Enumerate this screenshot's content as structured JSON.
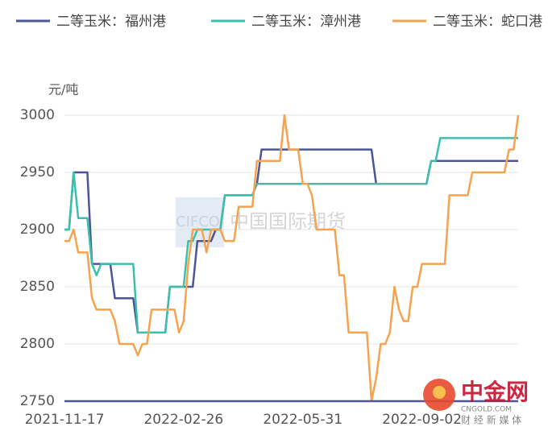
{
  "chart_data": {
    "type": "line",
    "y_axis_label": "元/吨",
    "categories": [
      "2021-11-17",
      null,
      null,
      null,
      null,
      null,
      null,
      null,
      null,
      null,
      null,
      null,
      null,
      null,
      null,
      null,
      null,
      null,
      null,
      null,
      null,
      null,
      null,
      null,
      null,
      null,
      "2022-02-26",
      null,
      null,
      null,
      null,
      null,
      null,
      null,
      null,
      null,
      null,
      null,
      null,
      null,
      null,
      null,
      null,
      null,
      null,
      null,
      null,
      null,
      null,
      null,
      null,
      null,
      "2022-05-31",
      null,
      null,
      null,
      null,
      null,
      null,
      null,
      null,
      null,
      null,
      null,
      null,
      null,
      null,
      null,
      null,
      null,
      null,
      null,
      null,
      null,
      null,
      null,
      null,
      null,
      "2022-09-02",
      null,
      null,
      null,
      null,
      null,
      null,
      null,
      null,
      null,
      null,
      null,
      null,
      null,
      null,
      null,
      null,
      null,
      null,
      null,
      null,
      null
    ],
    "series": [
      {
        "name": "二等玉米：福州港",
        "color": "#4b5597",
        "values": [
          2900,
          2900,
          2950,
          2950,
          2950,
          2950,
          2870,
          2870,
          2870,
          2870,
          2870,
          2840,
          2840,
          2840,
          2840,
          2840,
          2810,
          2810,
          2810,
          2810,
          2810,
          2810,
          2810,
          2850,
          2850,
          2850,
          2850,
          2850,
          2850,
          2890,
          2890,
          2890,
          2890,
          2900,
          2900,
          2930,
          2930,
          2930,
          2930,
          2930,
          2930,
          2930,
          2940,
          2970,
          2970,
          2970,
          2970,
          2970,
          2970,
          2970,
          2970,
          2970,
          2970,
          2970,
          2970,
          2970,
          2970,
          2970,
          2970,
          2970,
          2970,
          2970,
          2970,
          2970,
          2970,
          2970,
          2970,
          2970,
          2940,
          2940,
          2940,
          2940,
          2940,
          2940,
          2940,
          2940,
          2940,
          2940,
          2940,
          2940,
          2960,
          2960,
          2960,
          2960,
          2960,
          2960,
          2960,
          2960,
          2960,
          2960,
          2960,
          2960,
          2960,
          2960,
          2960,
          2960,
          2960,
          2960,
          2960,
          2960
        ]
      },
      {
        "name": "二等玉米：漳州港",
        "color": "#3dbfae",
        "values": [
          2900,
          2900,
          2950,
          2910,
          2910,
          2910,
          2870,
          2860,
          2870,
          2870,
          2870,
          2870,
          2870,
          2870,
          2870,
          2870,
          2810,
          2810,
          2810,
          2810,
          2810,
          2810,
          2810,
          2850,
          2850,
          2850,
          2850,
          2890,
          2890,
          2900,
          2900,
          2900,
          2900,
          2900,
          2900,
          2930,
          2930,
          2930,
          2930,
          2930,
          2930,
          2930,
          2940,
          2940,
          2940,
          2940,
          2940,
          2940,
          2940,
          2940,
          2940,
          2940,
          2940,
          2940,
          2940,
          2940,
          2940,
          2940,
          2940,
          2940,
          2940,
          2940,
          2940,
          2940,
          2940,
          2940,
          2940,
          2940,
          2940,
          2940,
          2940,
          2940,
          2940,
          2940,
          2940,
          2940,
          2940,
          2940,
          2940,
          2940,
          2960,
          2960,
          2980,
          2980,
          2980,
          2980,
          2980,
          2980,
          2980,
          2980,
          2980,
          2980,
          2980,
          2980,
          2980,
          2980,
          2980,
          2980,
          2980,
          2980
        ]
      },
      {
        "name": "二等玉米：蛇口港",
        "color": "#f5a34f",
        "values": [
          2890,
          2890,
          2900,
          2880,
          2880,
          2880,
          2840,
          2830,
          2830,
          2830,
          2830,
          2820,
          2800,
          2800,
          2800,
          2800,
          2790,
          2800,
          2800,
          2830,
          2830,
          2830,
          2830,
          2830,
          2830,
          2810,
          2820,
          2870,
          2900,
          2900,
          2900,
          2880,
          2900,
          2900,
          2900,
          2890,
          2890,
          2890,
          2920,
          2920,
          2920,
          2920,
          2960,
          2960,
          2960,
          2960,
          2960,
          2960,
          3000,
          2970,
          2970,
          2970,
          2940,
          2940,
          2930,
          2900,
          2900,
          2900,
          2900,
          2900,
          2860,
          2860,
          2810,
          2810,
          2810,
          2810,
          2810,
          2750,
          2770,
          2800,
          2800,
          2810,
          2850,
          2830,
          2820,
          2820,
          2850,
          2850,
          2870,
          2870,
          2870,
          2870,
          2870,
          2870,
          2930,
          2930,
          2930,
          2930,
          2930,
          2950,
          2950,
          2950,
          2950,
          2950,
          2950,
          2950,
          2950,
          2970,
          2970,
          3000
        ]
      }
    ],
    "ylim": [
      2750,
      3000
    ],
    "yticks": [
      2750,
      2800,
      2850,
      2900,
      2950,
      3000
    ],
    "grid": true,
    "legend": "top",
    "annotations": [
      "CIFCO",
      "中国国际期货",
      "中金网",
      "CNGOLD.COM",
      "财 经 新 媒 体"
    ]
  }
}
